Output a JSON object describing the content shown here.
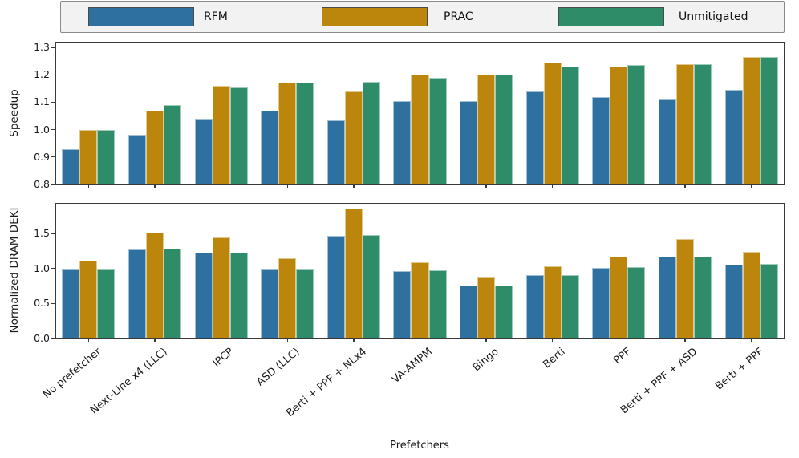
{
  "legend": {
    "note": "series colors and labels are defined once in chart_data[0].series"
  },
  "chart_data": [
    {
      "type": "bar",
      "ylabel": "Speedup",
      "categories": [
        "No prefetcher",
        "Next-Line x4 (LLC)",
        "IPCP",
        "ASD (LLC)",
        "Berti + PPF + NLx4",
        "VA-AMPM",
        "Bingo",
        "Berti",
        "PPF",
        "Berti + PPF + ASD",
        "Berti + PPF"
      ],
      "series": [
        {
          "name": "RFM",
          "color": "#2e71a0",
          "values": [
            0.93,
            0.98,
            1.04,
            1.07,
            1.035,
            1.105,
            1.105,
            1.14,
            1.12,
            1.11,
            1.145
          ]
        },
        {
          "name": "PRAC",
          "color": "#bc860d",
          "values": [
            1.0,
            1.07,
            1.16,
            1.17,
            1.14,
            1.2,
            1.2,
            1.245,
            1.23,
            1.24,
            1.265
          ]
        },
        {
          "name": "Unmitigated",
          "color": "#2e8c69",
          "values": [
            1.0,
            1.09,
            1.155,
            1.17,
            1.175,
            1.19,
            1.2,
            1.23,
            1.235,
            1.24,
            1.265
          ]
        }
      ],
      "ylim": [
        0.8,
        1.323
      ],
      "yticks": [
        "0.8",
        "0.9",
        "1.0",
        "1.1",
        "1.2",
        "1.3"
      ],
      "grid": false,
      "legend_position": "top-outside"
    },
    {
      "type": "bar",
      "ylabel": "Normalized DRAM DEKI",
      "xlabel": "Prefetchers",
      "categories": [
        "No prefetcher",
        "Next-Line x4 (LLC)",
        "IPCP",
        "ASD (LLC)",
        "Berti + PPF + NLx4",
        "VA-AMPM",
        "Bingo",
        "Berti",
        "PPF",
        "Berti + PPF + ASD",
        "Berti + PPF"
      ],
      "series": [
        {
          "name": "RFM",
          "color": "#2e71a0",
          "values": [
            1.0,
            1.27,
            1.22,
            1.0,
            1.47,
            0.96,
            0.76,
            0.9,
            1.01,
            1.17,
            1.05
          ]
        },
        {
          "name": "PRAC",
          "color": "#bc860d",
          "values": [
            1.11,
            1.51,
            1.44,
            1.15,
            1.85,
            1.09,
            0.88,
            1.03,
            1.17,
            1.42,
            1.24
          ]
        },
        {
          "name": "Unmitigated",
          "color": "#2e8c69",
          "values": [
            1.0,
            1.28,
            1.22,
            1.0,
            1.48,
            0.97,
            0.76,
            0.9,
            1.02,
            1.17,
            1.06
          ]
        }
      ],
      "ylim": [
        0,
        1.94
      ],
      "yticks": [
        "0.0",
        "0.5",
        "1.0",
        "1.5"
      ],
      "grid": false
    }
  ]
}
